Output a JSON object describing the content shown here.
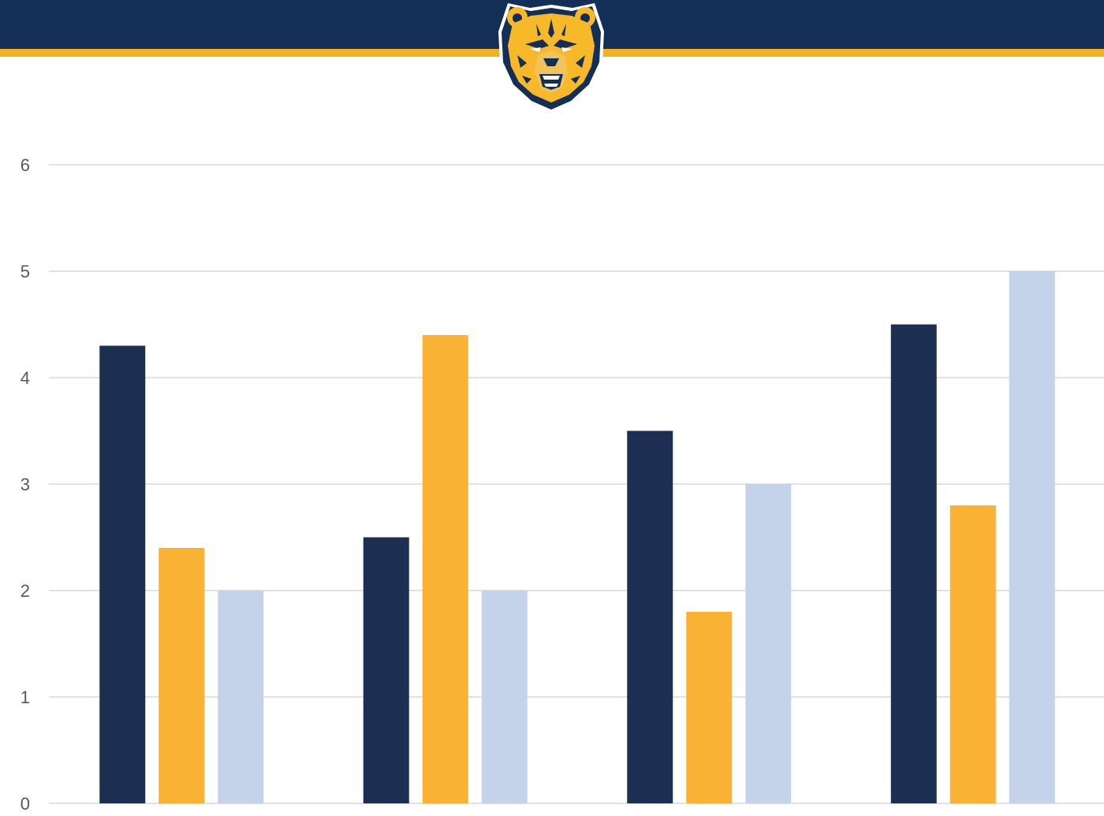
{
  "colors": {
    "header_navy": "#132f57",
    "header_gold": "#f3b023",
    "logo_gold": "#f7b82a",
    "logo_navy": "#132f57"
  },
  "logo": {
    "icon": "bear-head-logo-icon"
  },
  "chart_data": {
    "type": "bar",
    "title": "",
    "xlabel": "",
    "ylabel": "",
    "ylim": [
      0,
      6
    ],
    "yticks": [
      0,
      1,
      2,
      3,
      4,
      5,
      6
    ],
    "ytick_labels": [
      "0",
      "1",
      "2",
      "3",
      "4",
      "5",
      "6"
    ],
    "grid": true,
    "categories": [
      "",
      "",
      "",
      ""
    ],
    "series": [
      {
        "color": "#1c2e52",
        "values": [
          4.3,
          2.5,
          3.5,
          4.5
        ]
      },
      {
        "color": "#f9b233",
        "values": [
          2.4,
          4.4,
          1.8,
          2.8
        ]
      },
      {
        "color": "#c5d3ea",
        "values": [
          2.0,
          2.0,
          3.0,
          5.0
        ]
      }
    ]
  }
}
